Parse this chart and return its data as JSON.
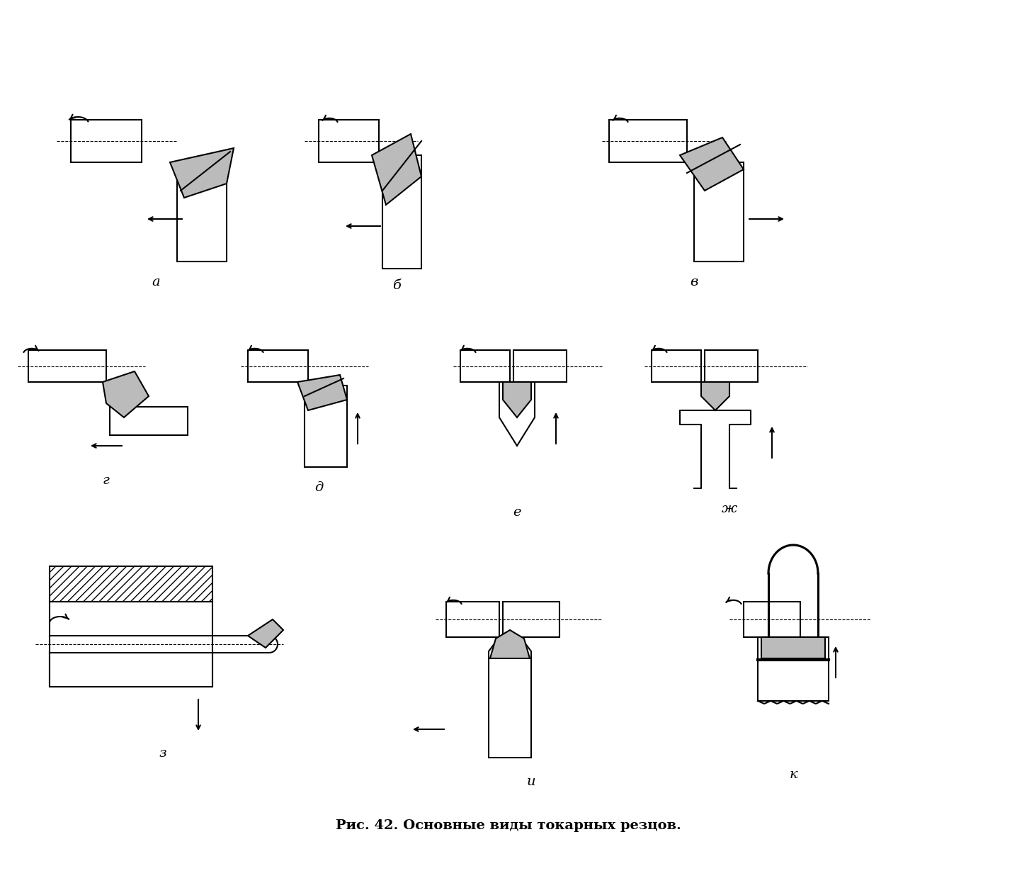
{
  "title": "Рис. 42. Основные виды токарных резцов.",
  "labels": [
    "а",
    "б",
    "в",
    "г",
    "д",
    "е",
    "ж",
    "з",
    "и",
    "к"
  ],
  "bg_color": "#ffffff",
  "line_color": "#000000",
  "hatch_color": "#555555",
  "dot_color": "#aaaaaa",
  "figsize": [
    14.36,
    12.29
  ],
  "dpi": 100
}
